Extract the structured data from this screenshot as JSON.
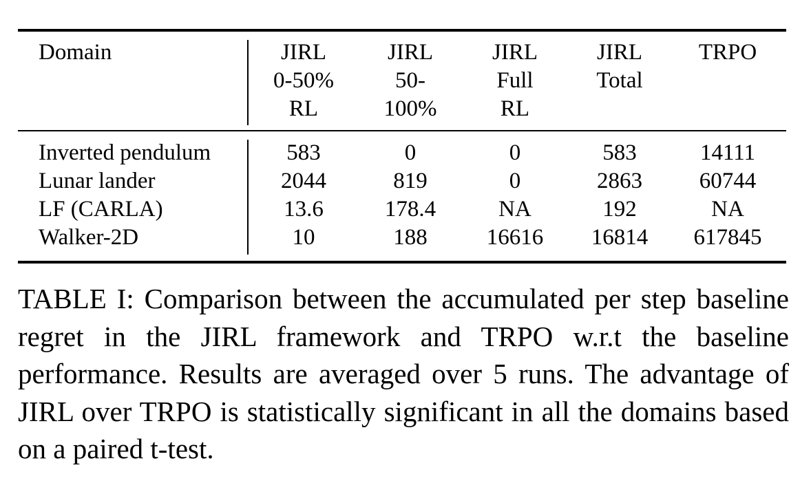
{
  "table": {
    "headers": [
      [
        "Domain"
      ],
      [
        "JIRL",
        "0-50%",
        "RL"
      ],
      [
        "JIRL",
        "50-",
        "100%"
      ],
      [
        "JIRL",
        "Full",
        "RL"
      ],
      [
        "JIRL",
        "Total"
      ],
      [
        "TRPO"
      ]
    ],
    "rows": [
      [
        "Inverted pendulum",
        "583",
        "0",
        "0",
        "583",
        "14111"
      ],
      [
        "Lunar lander",
        "2044",
        "819",
        "0",
        "2863",
        "60744"
      ],
      [
        "LF (CARLA)",
        "13.6",
        "178.4",
        "NA",
        "192",
        "NA"
      ],
      [
        "Walker-2D",
        "10",
        "188",
        "16616",
        "16814",
        "617845"
      ]
    ]
  },
  "caption": "TABLE I: Comparison between the accumulated per step baseline regret in the JIRL framework and TRPO w.r.t the baseline performance. Results are averaged over 5 runs. The advantage of JIRL over TRPO is statistically significant in all the domains based on a paired t-test."
}
